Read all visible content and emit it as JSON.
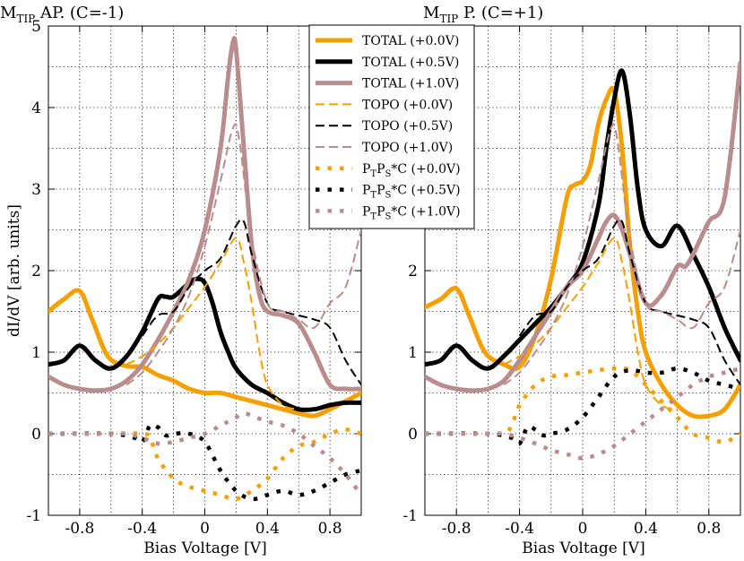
{
  "chart_data": [
    {
      "id": "left",
      "type": "line",
      "title": {
        "main": "M",
        "sub": "TIP",
        "rest": " AP. (C=-1)"
      },
      "xlabel": "Bias Voltage [V]",
      "ylabel": "dI/dV [arb. units]",
      "xlim": [
        -1.0,
        1.0
      ],
      "ylim": [
        -1,
        5
      ],
      "xticks": [
        -0.8,
        -0.4,
        0,
        0.4,
        0.8
      ],
      "xtick_labels": [
        "-0.8",
        "-0.4",
        "0",
        "0.4",
        "0.8"
      ],
      "yticks": [
        -1,
        0,
        1,
        2,
        3,
        4,
        5
      ],
      "ytick_labels": [
        "-1",
        "0",
        "1",
        "2",
        "3",
        "4",
        "5"
      ],
      "grid": true,
      "series": [
        {
          "name": "TOTAL (+0.0V)",
          "color": "#f5a000",
          "style": "thick",
          "x": [
            -1.0,
            -0.9,
            -0.8,
            -0.72,
            -0.62,
            -0.5,
            -0.4,
            -0.3,
            -0.2,
            -0.1,
            0.0,
            0.1,
            0.2,
            0.3,
            0.4,
            0.5,
            0.6,
            0.7,
            0.8,
            0.9,
            1.0
          ],
          "y": [
            1.5,
            1.65,
            1.75,
            1.4,
            0.95,
            0.83,
            0.82,
            0.72,
            0.65,
            0.55,
            0.5,
            0.5,
            0.45,
            0.4,
            0.35,
            0.3,
            0.25,
            0.22,
            0.3,
            0.4,
            0.5
          ]
        },
        {
          "name": "TOTAL (+0.5V)",
          "color": "#000000",
          "style": "thick",
          "x": [
            -1.0,
            -0.9,
            -0.8,
            -0.7,
            -0.6,
            -0.5,
            -0.4,
            -0.3,
            -0.25,
            -0.2,
            -0.1,
            -0.05,
            0.0,
            0.05,
            0.1,
            0.15,
            0.2,
            0.3,
            0.4,
            0.5,
            0.6,
            0.7,
            0.8,
            0.9,
            1.0
          ],
          "y": [
            0.85,
            0.9,
            1.08,
            0.9,
            0.8,
            0.95,
            1.25,
            1.65,
            1.68,
            1.68,
            1.85,
            1.9,
            1.85,
            1.6,
            1.25,
            1.0,
            0.8,
            0.6,
            0.5,
            0.38,
            0.3,
            0.3,
            0.35,
            0.38,
            0.38
          ]
        },
        {
          "name": "TOTAL (+1.0V)",
          "color": "#b98d8d",
          "style": "thick",
          "x": [
            -1.0,
            -0.9,
            -0.8,
            -0.7,
            -0.6,
            -0.5,
            -0.4,
            -0.3,
            -0.2,
            -0.1,
            0.0,
            0.1,
            0.15,
            0.18,
            0.2,
            0.25,
            0.3,
            0.35,
            0.4,
            0.5,
            0.6,
            0.7,
            0.8,
            0.9,
            1.0
          ],
          "y": [
            0.7,
            0.6,
            0.55,
            0.53,
            0.55,
            0.65,
            0.85,
            1.15,
            1.5,
            1.9,
            2.5,
            3.5,
            4.4,
            4.8,
            4.7,
            3.5,
            2.3,
            1.7,
            1.5,
            1.45,
            1.35,
            1.0,
            0.6,
            0.55,
            0.55
          ]
        },
        {
          "name": "TOPO (+0.0V)",
          "color": "#f5a000",
          "style": "dashed",
          "x": [
            -0.5,
            -0.4,
            -0.3,
            -0.2,
            -0.1,
            0.0,
            0.1,
            0.2,
            0.25,
            0.3,
            0.35,
            0.4,
            0.5,
            0.6
          ],
          "y": [
            0.85,
            0.95,
            1.1,
            1.3,
            1.55,
            1.8,
            2.1,
            2.4,
            2.1,
            1.6,
            1.0,
            0.6,
            0.35,
            0.3
          ]
        },
        {
          "name": "TOPO (+0.5V)",
          "color": "#000000",
          "style": "dashed",
          "x": [
            -0.4,
            -0.3,
            -0.2,
            -0.1,
            0.0,
            0.1,
            0.2,
            0.25,
            0.3,
            0.4,
            0.5,
            0.6,
            0.7,
            0.8,
            0.9,
            1.0
          ],
          "y": [
            1.2,
            1.45,
            1.5,
            1.8,
            2.0,
            2.15,
            2.55,
            2.6,
            2.2,
            1.6,
            1.5,
            1.45,
            1.4,
            1.3,
            0.9,
            0.6
          ]
        },
        {
          "name": "TOPO (+1.0V)",
          "color": "#b98d8d",
          "style": "dashed",
          "x": [
            -0.5,
            -0.4,
            -0.3,
            -0.2,
            -0.1,
            0.0,
            0.1,
            0.18,
            0.22,
            0.3,
            0.4,
            0.5,
            0.6,
            0.7,
            0.8,
            0.9,
            1.0
          ],
          "y": [
            0.6,
            0.75,
            1.0,
            1.3,
            1.7,
            2.3,
            3.1,
            3.75,
            3.6,
            2.4,
            1.6,
            1.5,
            1.4,
            1.3,
            1.6,
            1.8,
            2.5
          ]
        },
        {
          "name": "P_TP_S*C (+0.0V)",
          "color": "#f5a000",
          "style": "dotted",
          "x": [
            -1.0,
            -0.6,
            -0.4,
            -0.35,
            -0.3,
            -0.2,
            -0.1,
            0.0,
            0.1,
            0.2,
            0.3,
            0.4,
            0.5,
            0.6,
            0.7,
            0.8,
            0.9,
            1.0
          ],
          "y": [
            0.0,
            0.0,
            0.0,
            -0.05,
            -0.3,
            -0.55,
            -0.65,
            -0.7,
            -0.75,
            -0.8,
            -0.7,
            -0.55,
            -0.3,
            -0.15,
            -0.1,
            0.0,
            0.05,
            0.0
          ]
        },
        {
          "name": "P_TP_S*C (+0.5V)",
          "color": "#000000",
          "style": "dotted",
          "x": [
            -1.0,
            -0.6,
            -0.45,
            -0.4,
            -0.35,
            -0.3,
            -0.25,
            -0.2,
            -0.1,
            0.0,
            0.1,
            0.2,
            0.3,
            0.4,
            0.5,
            0.6,
            0.7,
            0.8,
            0.9,
            1.0
          ],
          "y": [
            0.0,
            0.0,
            -0.05,
            -0.1,
            0.1,
            0.08,
            -0.02,
            0.0,
            0.0,
            -0.1,
            -0.45,
            -0.7,
            -0.8,
            -0.75,
            -0.7,
            -0.75,
            -0.7,
            -0.6,
            -0.5,
            -0.45
          ]
        },
        {
          "name": "P_TP_S*C (+1.0V)",
          "color": "#b98d8d",
          "style": "dotted",
          "x": [
            -1.0,
            -0.6,
            -0.5,
            -0.4,
            -0.3,
            -0.2,
            -0.1,
            0.0,
            0.1,
            0.15,
            0.2,
            0.25,
            0.3,
            0.4,
            0.5,
            0.6,
            0.7,
            0.8,
            0.9,
            1.0
          ],
          "y": [
            0.0,
            0.0,
            0.0,
            -0.05,
            -0.12,
            -0.1,
            -0.05,
            0.0,
            0.1,
            0.15,
            0.2,
            0.25,
            0.22,
            0.15,
            0.1,
            0.0,
            -0.15,
            -0.3,
            -0.5,
            -0.75
          ]
        }
      ]
    },
    {
      "id": "right",
      "type": "line",
      "title": {
        "main": "M",
        "sub": "TIP",
        "rest": " P. (C=+1)"
      },
      "xlabel": "Bias Voltage [V]",
      "ylabel": "",
      "xlim": [
        -1.0,
        1.0
      ],
      "ylim": [
        -1,
        5
      ],
      "xticks": [
        -0.8,
        -0.4,
        0,
        0.4,
        0.8
      ],
      "xtick_labels": [
        "-0.8",
        "-0.4",
        "0",
        "0.4",
        "0.8"
      ],
      "yticks": [
        -1,
        0,
        1,
        2
      ],
      "ytick_labels": [
        "-1",
        "0",
        "1",
        "2"
      ],
      "grid": true,
      "series": [
        {
          "name": "TOTAL (+0.0V)",
          "color": "#f5a000",
          "style": "thick",
          "x": [
            -1.0,
            -0.9,
            -0.8,
            -0.72,
            -0.62,
            -0.5,
            -0.4,
            -0.3,
            -0.2,
            -0.1,
            -0.05,
            0.0,
            0.05,
            0.1,
            0.15,
            0.2,
            0.25,
            0.3,
            0.35,
            0.4,
            0.5,
            0.6,
            0.7,
            0.8,
            0.9,
            1.0
          ],
          "y": [
            1.55,
            1.65,
            1.78,
            1.45,
            1.0,
            0.85,
            0.82,
            1.2,
            1.9,
            2.9,
            3.05,
            3.1,
            3.3,
            3.8,
            4.1,
            4.2,
            3.5,
            2.3,
            1.5,
            1.0,
            0.6,
            0.35,
            0.22,
            0.22,
            0.3,
            0.6
          ]
        },
        {
          "name": "TOTAL (+0.5V)",
          "color": "#000000",
          "style": "thick",
          "x": [
            -1.0,
            -0.9,
            -0.8,
            -0.7,
            -0.6,
            -0.5,
            -0.4,
            -0.3,
            -0.2,
            -0.1,
            0.0,
            0.1,
            0.15,
            0.2,
            0.25,
            0.3,
            0.35,
            0.4,
            0.5,
            0.6,
            0.7,
            0.8,
            0.9,
            1.0
          ],
          "y": [
            0.85,
            0.9,
            1.08,
            0.9,
            0.8,
            0.95,
            1.15,
            1.35,
            1.55,
            1.8,
            2.1,
            2.8,
            3.5,
            4.1,
            4.45,
            3.9,
            3.0,
            2.5,
            2.3,
            2.55,
            2.2,
            1.8,
            1.3,
            0.9
          ]
        },
        {
          "name": "TOTAL (+1.0V)",
          "color": "#b98d8d",
          "style": "thick",
          "x": [
            -1.0,
            -0.9,
            -0.8,
            -0.7,
            -0.6,
            -0.5,
            -0.4,
            -0.3,
            -0.2,
            -0.1,
            0.0,
            0.1,
            0.15,
            0.2,
            0.25,
            0.3,
            0.4,
            0.5,
            0.6,
            0.65,
            0.7,
            0.8,
            0.9,
            1.0
          ],
          "y": [
            0.7,
            0.6,
            0.55,
            0.53,
            0.55,
            0.65,
            0.9,
            1.2,
            1.5,
            1.8,
            2.0,
            2.4,
            2.6,
            2.68,
            2.5,
            2.2,
            1.6,
            1.7,
            2.05,
            2.05,
            2.2,
            2.6,
            2.9,
            4.55
          ]
        },
        {
          "name": "TOPO (+0.0V)",
          "color": "#f5a000",
          "style": "dashed",
          "x": [
            -0.5,
            -0.4,
            -0.3,
            -0.2,
            -0.1,
            0.0,
            0.1,
            0.2,
            0.25,
            0.3,
            0.35,
            0.4,
            0.5,
            0.6
          ],
          "y": [
            0.85,
            0.95,
            1.1,
            1.3,
            1.55,
            1.8,
            2.1,
            2.4,
            2.1,
            1.6,
            1.0,
            0.6,
            0.35,
            0.3
          ]
        },
        {
          "name": "TOPO (+0.5V)",
          "color": "#000000",
          "style": "dashed",
          "x": [
            -0.4,
            -0.3,
            -0.2,
            -0.1,
            0.0,
            0.1,
            0.2,
            0.25,
            0.3,
            0.4,
            0.5,
            0.6,
            0.7,
            0.8,
            0.9,
            1.0
          ],
          "y": [
            1.2,
            1.45,
            1.5,
            1.8,
            2.0,
            2.15,
            2.55,
            2.6,
            2.2,
            1.6,
            1.5,
            1.45,
            1.4,
            1.3,
            0.9,
            0.6
          ]
        },
        {
          "name": "TOPO (+1.0V)",
          "color": "#b98d8d",
          "style": "dashed",
          "x": [
            -0.5,
            -0.4,
            -0.3,
            -0.2,
            -0.1,
            0.0,
            0.1,
            0.18,
            0.22,
            0.3,
            0.4,
            0.5,
            0.6,
            0.7,
            0.8,
            0.9,
            1.0
          ],
          "y": [
            0.6,
            0.75,
            1.0,
            1.3,
            1.7,
            2.3,
            3.1,
            3.75,
            3.6,
            2.4,
            1.6,
            1.5,
            1.4,
            1.3,
            1.6,
            1.8,
            2.5
          ]
        },
        {
          "name": "P_TP_S*C (+0.0V)",
          "color": "#f5a000",
          "style": "dotted",
          "x": [
            -1.0,
            -0.6,
            -0.5,
            -0.45,
            -0.4,
            -0.3,
            -0.2,
            -0.1,
            0.0,
            0.1,
            0.2,
            0.3,
            0.4,
            0.5,
            0.6,
            0.7,
            0.8,
            0.9,
            1.0
          ],
          "y": [
            0.0,
            0.0,
            0.0,
            0.1,
            0.35,
            0.6,
            0.7,
            0.72,
            0.75,
            0.78,
            0.8,
            0.78,
            0.6,
            0.4,
            0.2,
            0.0,
            -0.05,
            -0.1,
            0.0
          ]
        },
        {
          "name": "P_TP_S*C (+0.5V)",
          "color": "#000000",
          "style": "dotted",
          "x": [
            -1.0,
            -0.6,
            -0.45,
            -0.4,
            -0.35,
            -0.3,
            -0.25,
            -0.2,
            -0.1,
            0.0,
            0.1,
            0.2,
            0.3,
            0.4,
            0.5,
            0.6,
            0.7,
            0.8,
            0.9,
            1.0
          ],
          "y": [
            0.0,
            0.0,
            -0.05,
            -0.12,
            0.08,
            0.05,
            -0.02,
            0.0,
            0.05,
            0.2,
            0.45,
            0.7,
            0.78,
            0.75,
            0.75,
            0.8,
            0.75,
            0.65,
            0.6,
            0.55
          ]
        },
        {
          "name": "P_TP_S*C (+1.0V)",
          "color": "#b98d8d",
          "style": "dotted",
          "x": [
            -1.0,
            -0.6,
            -0.5,
            -0.4,
            -0.3,
            -0.2,
            -0.1,
            0.0,
            0.1,
            0.2,
            0.3,
            0.4,
            0.5,
            0.6,
            0.7,
            0.8,
            0.9,
            1.0
          ],
          "y": [
            0.0,
            0.0,
            0.0,
            -0.05,
            -0.12,
            -0.2,
            -0.25,
            -0.3,
            -0.25,
            -0.15,
            0.0,
            0.15,
            0.3,
            0.45,
            0.6,
            0.7,
            0.75,
            0.8
          ]
        }
      ]
    }
  ],
  "legend": {
    "items": [
      {
        "prefix": "TOTAL (+0.0V)",
        "color": "#f5a000",
        "style": "thick"
      },
      {
        "prefix": "TOTAL (+0.5V)",
        "color": "#000000",
        "style": "thick"
      },
      {
        "prefix": "TOTAL (+1.0V)",
        "color": "#b98d8d",
        "style": "thick"
      },
      {
        "prefix": "TOPO (+0.0V)",
        "color": "#f5a000",
        "style": "dashed"
      },
      {
        "prefix": "TOPO (+0.5V)",
        "color": "#000000",
        "style": "dashed"
      },
      {
        "prefix": "TOPO (+1.0V)",
        "color": "#b98d8d",
        "style": "dashed"
      },
      {
        "prefix": "P",
        "sub1": "T",
        "mid": "P",
        "sub2": "S",
        "suffix": "*C (+0.0V)",
        "color": "#f5a000",
        "style": "dotted"
      },
      {
        "prefix": "P",
        "sub1": "T",
        "mid": "P",
        "sub2": "S",
        "suffix": "*C (+0.5V)",
        "color": "#000000",
        "style": "dotted"
      },
      {
        "prefix": "P",
        "sub1": "T",
        "mid": "P",
        "sub2": "S",
        "suffix": "*C (+1.0V)",
        "color": "#b98d8d",
        "style": "dotted"
      }
    ]
  }
}
